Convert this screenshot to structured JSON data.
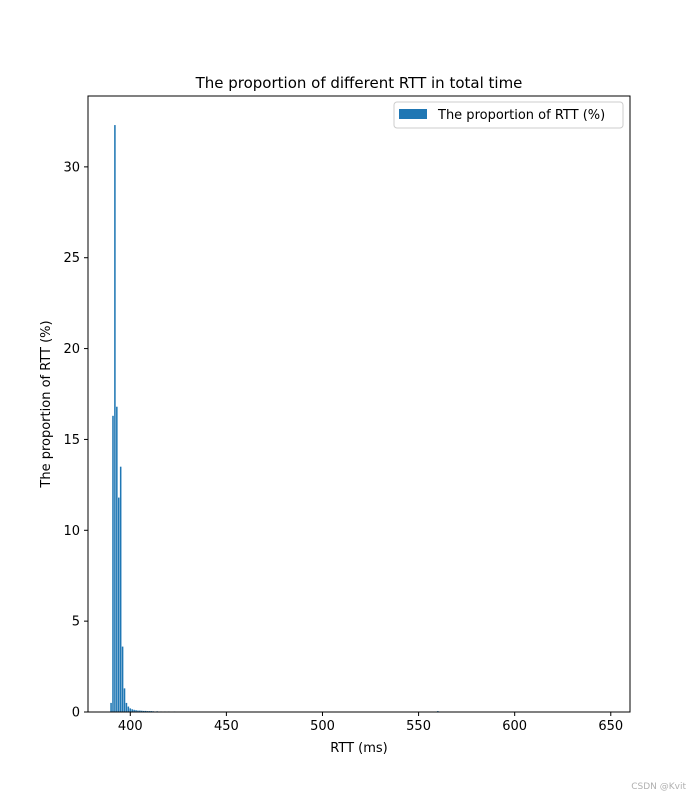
{
  "chart_data": {
    "type": "bar",
    "title": "The proportion of different RTT in total time",
    "xlabel": "RTT (ms)",
    "ylabel": "The proportion of RTT (%)",
    "legend": {
      "label": "The proportion of RTT (%)",
      "position": "top-right"
    },
    "xlim": [
      378,
      660
    ],
    "ylim": [
      0,
      33.9
    ],
    "xticks": [
      400,
      450,
      500,
      550,
      600,
      650
    ],
    "yticks": [
      0,
      5,
      10,
      15,
      20,
      25,
      30
    ],
    "grid": false,
    "color": "#1f77b4",
    "bar_width": 0.8,
    "x": [
      390,
      391,
      392,
      393,
      394,
      395,
      396,
      397,
      398,
      399,
      400,
      401,
      402,
      403,
      404,
      405,
      406,
      407,
      408,
      409,
      410,
      411,
      412,
      414,
      416,
      418,
      420,
      423,
      560
    ],
    "values": [
      0.5,
      16.3,
      32.3,
      16.8,
      11.8,
      13.5,
      3.6,
      1.3,
      0.5,
      0.3,
      0.2,
      0.15,
      0.12,
      0.1,
      0.08,
      0.08,
      0.07,
      0.06,
      0.06,
      0.05,
      0.05,
      0.05,
      0.04,
      0.04,
      0.03,
      0.03,
      0.03,
      0.03,
      0.05
    ]
  },
  "watermark": "CSDN @Kvit"
}
